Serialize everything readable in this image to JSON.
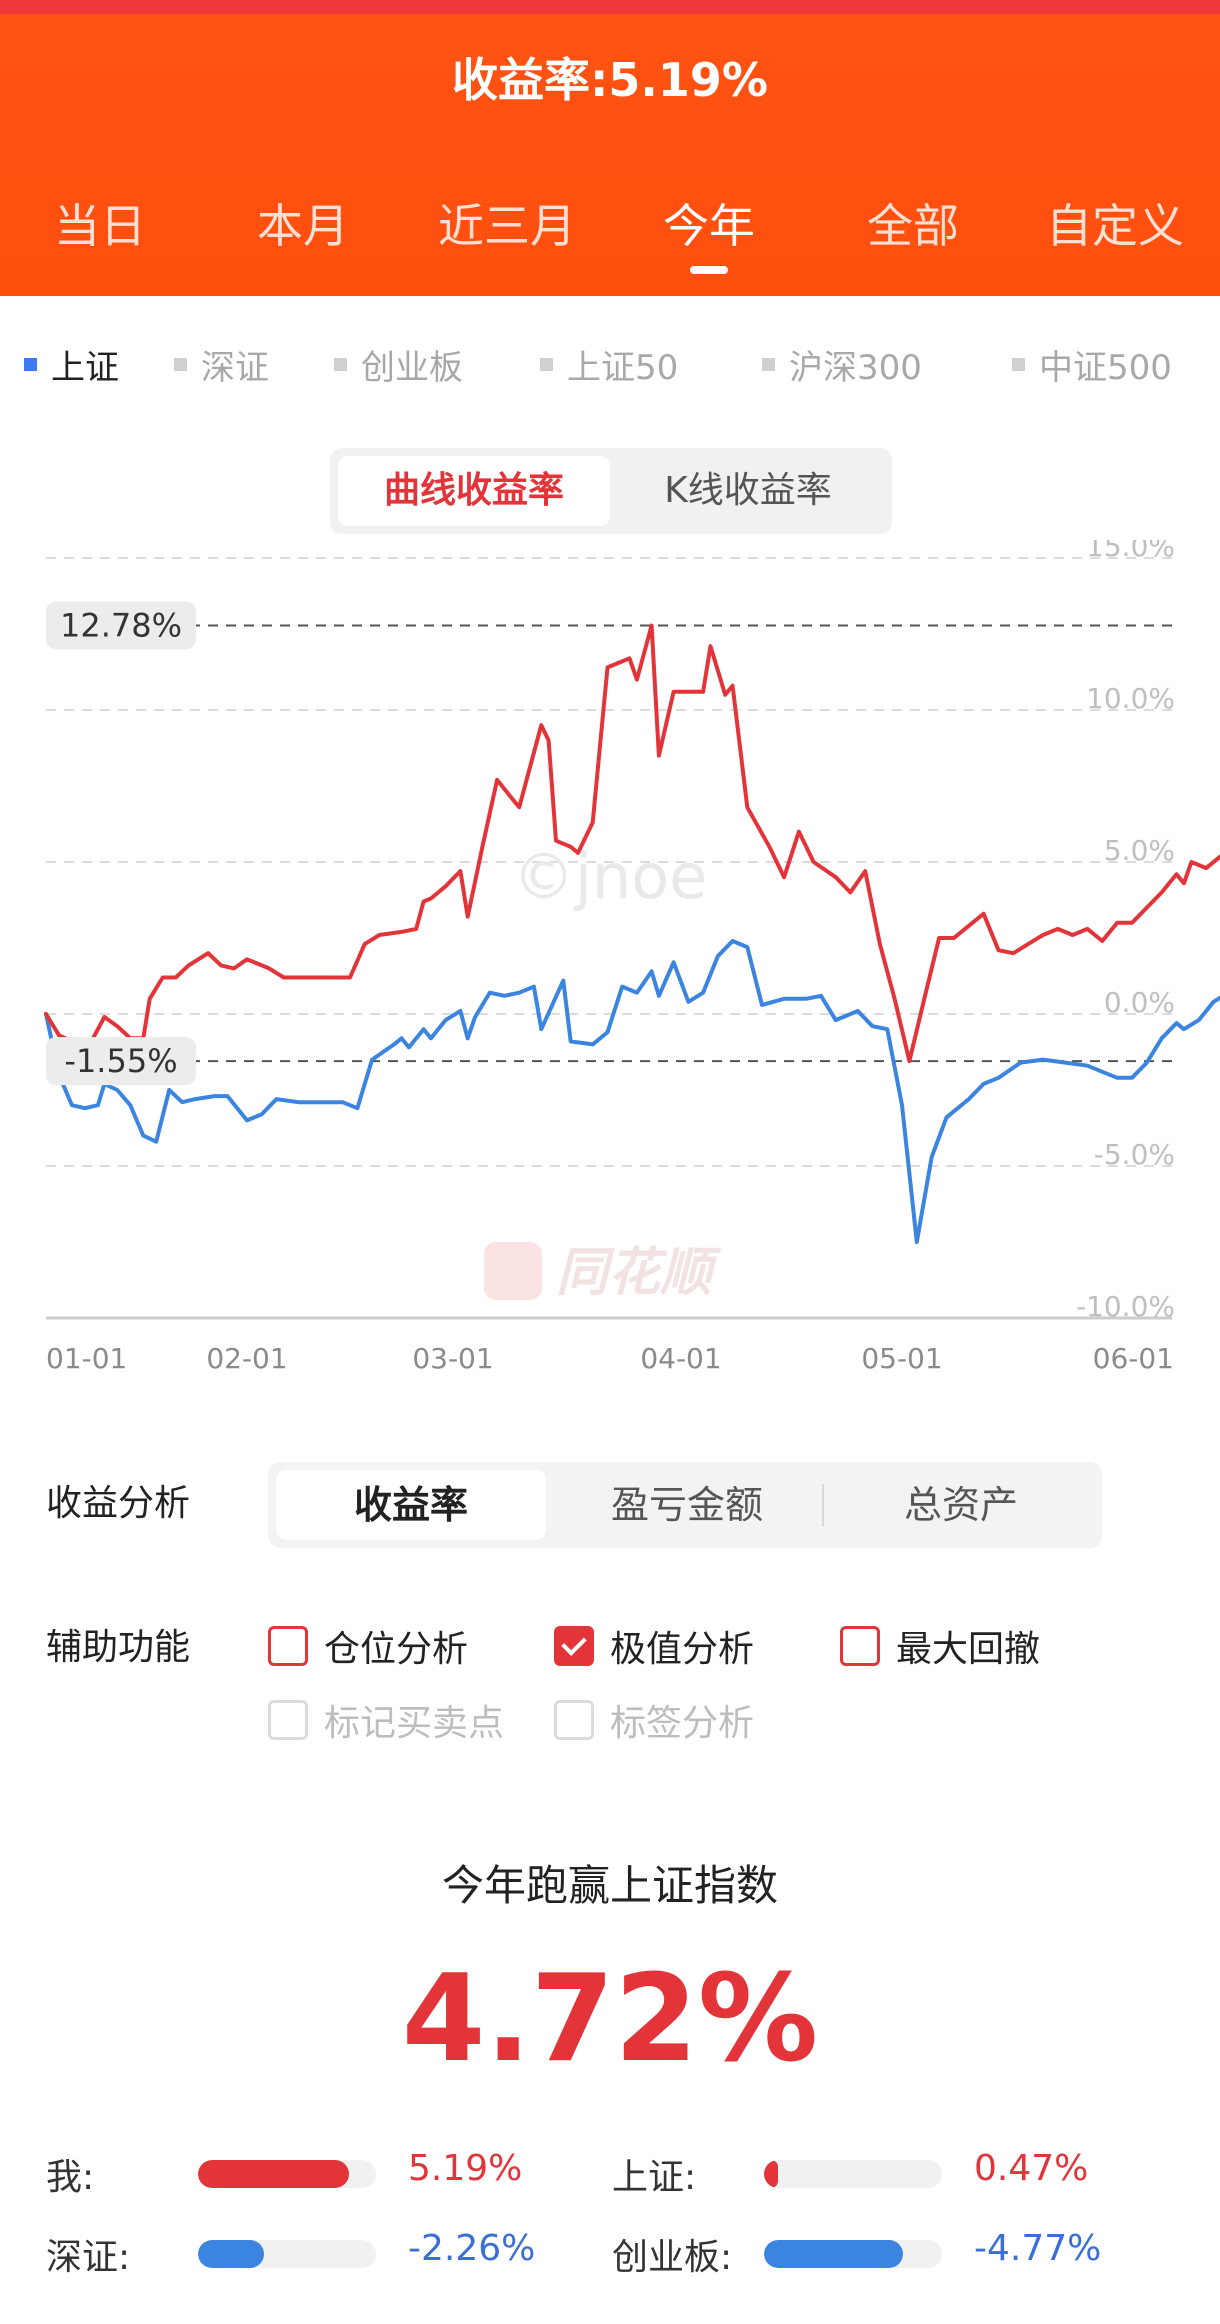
{
  "header": {
    "title_label": "收益率:",
    "title_value": "5.19%",
    "tabs": [
      "当日",
      "本月",
      "近三月",
      "今年",
      "全部",
      "自定义"
    ],
    "active_tab": 3
  },
  "indices": {
    "items": [
      "上证",
      "深证",
      "创业板",
      "上证50",
      "沪深300",
      "中证500"
    ],
    "active": 0
  },
  "chart_mode": {
    "options": [
      "曲线收益率",
      "K线收益率"
    ],
    "active": 0
  },
  "chart_data": {
    "type": "line",
    "x_ticks": [
      "01-01",
      "02-01",
      "03-01",
      "04-01",
      "05-01",
      "06-01"
    ],
    "y_ticks": [
      "15.0%",
      "10.0%",
      "5.0%",
      "0.0%",
      "-5.0%",
      "-10.0%"
    ],
    "ylim": [
      -10,
      15
    ],
    "grid": true,
    "extreme_labels": [
      "12.78%",
      "-1.55%"
    ],
    "max": 12.78,
    "min": -1.55,
    "watermark": "©jnoe",
    "logo_text": "同花顺",
    "series": [
      {
        "color": "#e3343a",
        "points": [
          [
            "01-01",
            0.0
          ],
          [
            "01-03",
            -0.7
          ],
          [
            "01-05",
            -0.9
          ],
          [
            "01-08",
            -0.9
          ],
          [
            "01-10",
            -0.1
          ],
          [
            "01-12",
            -0.4
          ],
          [
            "01-14",
            -0.8
          ],
          [
            "01-16",
            -0.8
          ],
          [
            "01-17",
            0.5
          ],
          [
            "01-19",
            1.2
          ],
          [
            "01-21",
            1.2
          ],
          [
            "01-23",
            1.6
          ],
          [
            "01-26",
            2.0
          ],
          [
            "01-28",
            1.6
          ],
          [
            "01-30",
            1.5
          ],
          [
            "02-01",
            1.8
          ],
          [
            "02-04",
            1.5
          ],
          [
            "02-06",
            1.2
          ],
          [
            "02-08",
            1.2
          ],
          [
            "02-12",
            1.2
          ],
          [
            "02-15",
            1.2
          ],
          [
            "02-17",
            2.3
          ],
          [
            "02-19",
            2.6
          ],
          [
            "02-22",
            2.7
          ],
          [
            "02-24",
            2.8
          ],
          [
            "02-25",
            3.7
          ],
          [
            "02-26",
            3.8
          ],
          [
            "02-28",
            4.2
          ],
          [
            "03-02",
            4.7
          ],
          [
            "03-03",
            3.2
          ],
          [
            "03-05",
            5.5
          ],
          [
            "03-07",
            7.7
          ],
          [
            "03-09",
            7.1
          ],
          [
            "03-10",
            6.8
          ],
          [
            "03-13",
            9.5
          ],
          [
            "03-14",
            9.0
          ],
          [
            "03-15",
            5.7
          ],
          [
            "03-17",
            5.5
          ],
          [
            "03-18",
            5.3
          ],
          [
            "03-20",
            6.3
          ],
          [
            "03-22",
            11.4
          ],
          [
            "03-24",
            11.6
          ],
          [
            "03-25",
            11.7
          ],
          [
            "03-26",
            11.0
          ],
          [
            "03-28",
            12.78
          ],
          [
            "03-29",
            8.5
          ],
          [
            "03-31",
            10.6
          ],
          [
            "04-01",
            10.6
          ],
          [
            "04-04",
            10.6
          ],
          [
            "04-05",
            12.1
          ],
          [
            "04-07",
            10.5
          ],
          [
            "04-08",
            10.8
          ],
          [
            "04-10",
            6.8
          ],
          [
            "04-13",
            5.5
          ],
          [
            "04-15",
            4.5
          ],
          [
            "04-17",
            6.0
          ],
          [
            "04-19",
            5.0
          ],
          [
            "04-22",
            4.5
          ],
          [
            "04-24",
            4.0
          ],
          [
            "04-26",
            4.7
          ],
          [
            "04-28",
            2.3
          ],
          [
            "04-30",
            0.5
          ],
          [
            "05-02",
            -1.55
          ],
          [
            "05-04",
            0.5
          ],
          [
            "05-06",
            2.5
          ],
          [
            "05-08",
            2.5
          ],
          [
            "05-10",
            2.9
          ],
          [
            "05-12",
            3.3
          ],
          [
            "05-14",
            2.1
          ],
          [
            "05-16",
            2.0
          ],
          [
            "05-18",
            2.3
          ],
          [
            "05-20",
            2.6
          ],
          [
            "05-22",
            2.8
          ],
          [
            "05-24",
            2.6
          ],
          [
            "05-26",
            2.8
          ],
          [
            "05-28",
            2.4
          ],
          [
            "05-30",
            3.0
          ],
          [
            "06-01",
            3.0
          ],
          [
            "06-03",
            3.5
          ],
          [
            "06-05",
            4.0
          ],
          [
            "06-07",
            4.6
          ],
          [
            "06-08",
            4.3
          ],
          [
            "06-09",
            5.0
          ],
          [
            "06-11",
            4.8
          ],
          [
            "06-13",
            5.2
          ],
          [
            "06-15",
            5.1
          ],
          [
            "06-17",
            4.7
          ],
          [
            "06-18",
            5.19
          ]
        ]
      },
      {
        "color": "#3b84e0",
        "points": [
          [
            "01-01",
            0.0
          ],
          [
            "01-03",
            -2.0
          ],
          [
            "01-05",
            -3.0
          ],
          [
            "01-07",
            -3.1
          ],
          [
            "01-09",
            -3.0
          ],
          [
            "01-10",
            -2.3
          ],
          [
            "01-12",
            -2.5
          ],
          [
            "01-14",
            -3.0
          ],
          [
            "01-16",
            -4.0
          ],
          [
            "01-18",
            -4.2
          ],
          [
            "01-20",
            -2.5
          ],
          [
            "01-22",
            -2.9
          ],
          [
            "01-24",
            -2.8
          ],
          [
            "01-27",
            -2.7
          ],
          [
            "01-29",
            -2.7
          ],
          [
            "02-01",
            -3.5
          ],
          [
            "02-03",
            -3.3
          ],
          [
            "02-05",
            -2.8
          ],
          [
            "02-08",
            -2.9
          ],
          [
            "02-11",
            -2.9
          ],
          [
            "02-14",
            -2.9
          ],
          [
            "02-16",
            -3.1
          ],
          [
            "02-18",
            -1.5
          ],
          [
            "02-21",
            -1.0
          ],
          [
            "02-22",
            -0.8
          ],
          [
            "02-23",
            -1.1
          ],
          [
            "02-25",
            -0.5
          ],
          [
            "02-26",
            -0.8
          ],
          [
            "02-28",
            -0.2
          ],
          [
            "03-02",
            0.1
          ],
          [
            "03-03",
            -0.8
          ],
          [
            "03-04",
            -0.1
          ],
          [
            "03-06",
            0.7
          ],
          [
            "03-08",
            0.6
          ],
          [
            "03-10",
            0.7
          ],
          [
            "03-12",
            0.9
          ],
          [
            "03-13",
            -0.5
          ],
          [
            "03-16",
            1.1
          ],
          [
            "03-17",
            -0.9
          ],
          [
            "03-20",
            -1.0
          ],
          [
            "03-22",
            -0.6
          ],
          [
            "03-24",
            0.9
          ],
          [
            "03-26",
            0.7
          ],
          [
            "03-28",
            1.4
          ],
          [
            "03-29",
            0.6
          ],
          [
            "03-31",
            1.7
          ],
          [
            "04-02",
            0.4
          ],
          [
            "04-04",
            0.7
          ],
          [
            "04-06",
            1.9
          ],
          [
            "04-08",
            2.4
          ],
          [
            "04-10",
            2.2
          ],
          [
            "04-12",
            0.3
          ],
          [
            "04-15",
            0.5
          ],
          [
            "04-18",
            0.5
          ],
          [
            "04-20",
            0.6
          ],
          [
            "04-22",
            -0.2
          ],
          [
            "04-25",
            0.1
          ],
          [
            "04-27",
            -0.4
          ],
          [
            "04-29",
            -0.5
          ],
          [
            "05-01",
            -3.0
          ],
          [
            "05-03",
            -7.5
          ],
          [
            "05-05",
            -4.7
          ],
          [
            "05-07",
            -3.4
          ],
          [
            "05-10",
            -2.8
          ],
          [
            "05-12",
            -2.3
          ],
          [
            "05-14",
            -2.1
          ],
          [
            "05-17",
            -1.6
          ],
          [
            "05-20",
            -1.5
          ],
          [
            "05-23",
            -1.6
          ],
          [
            "05-26",
            -1.7
          ],
          [
            "05-28",
            -1.9
          ],
          [
            "05-30",
            -2.1
          ],
          [
            "06-01",
            -2.1
          ],
          [
            "06-03",
            -1.6
          ],
          [
            "06-05",
            -0.8
          ],
          [
            "06-07",
            -0.3
          ],
          [
            "06-08",
            -0.5
          ],
          [
            "06-10",
            -0.2
          ],
          [
            "06-12",
            0.4
          ],
          [
            "06-14",
            0.7
          ],
          [
            "06-15",
            1.6
          ],
          [
            "06-16",
            0.9
          ],
          [
            "06-18",
            0.47
          ]
        ]
      }
    ]
  },
  "analysis": {
    "label": "收益分析",
    "options": [
      "收益率",
      "盈亏金额",
      "总资产"
    ],
    "active": 0
  },
  "aux": {
    "label": "辅助功能",
    "options": [
      {
        "label": "仓位分析",
        "checked": false,
        "enabled": true
      },
      {
        "label": "极值分析",
        "checked": true,
        "enabled": true
      },
      {
        "label": "最大回撤",
        "checked": false,
        "enabled": true
      },
      {
        "label": "标记买卖点",
        "checked": false,
        "enabled": false
      },
      {
        "label": "标签分析",
        "checked": false,
        "enabled": false
      }
    ]
  },
  "summary": {
    "title": "今年跑赢上证指数",
    "value": "4.72%",
    "comparisons": [
      {
        "label": "我:",
        "value": "5.19%",
        "fraction": 0.85,
        "color": "#e3343a",
        "value_color": "#e3343a"
      },
      {
        "label": "上证:",
        "value": "0.47%",
        "fraction": 0.08,
        "color": "#e3343a",
        "value_color": "#e3343a"
      },
      {
        "label": "深证:",
        "value": "-2.26%",
        "fraction": 0.37,
        "color": "#3b84e0",
        "value_color": "#3b6fd4"
      },
      {
        "label": "创业板:",
        "value": "-4.77%",
        "fraction": 0.78,
        "color": "#3b84e0",
        "value_color": "#3b6fd4"
      }
    ]
  }
}
